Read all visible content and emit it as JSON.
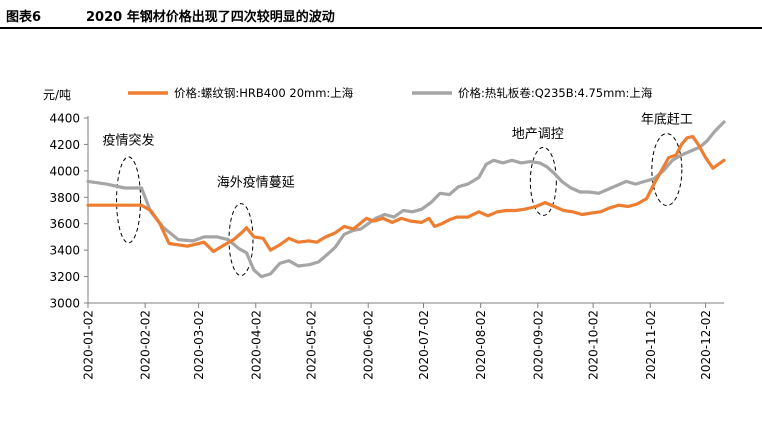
{
  "figure": {
    "label": "图表6",
    "title": "2020 年钢材价格出现了四次较明显的波动"
  },
  "chart_data": {
    "type": "line",
    "y_unit": "元/吨",
    "ylim": [
      3000,
      4400
    ],
    "y_ticks": [
      "4400",
      "4200",
      "4000",
      "3800",
      "3600",
      "3400",
      "3200",
      "3000"
    ],
    "x_ticks": [
      "2020-01-02",
      "2020-02-02",
      "2020-03-02",
      "2020-04-02",
      "2020-05-02",
      "2020-06-02",
      "2020-07-02",
      "2020-08-02",
      "2020-09-02",
      "2020-10-02",
      "2020-11-02",
      "2020-12-02"
    ],
    "xlim": [
      "2020-01-02",
      "2020-12-12"
    ],
    "grid": false,
    "legend_position": "top",
    "series": [
      {
        "name": "价格:螺纹钢:HRB400 20mm:上海",
        "color": "#ED7D31",
        "points": [
          [
            "2020-01-02",
            3740
          ],
          [
            "2020-01-20",
            3740
          ],
          [
            "2020-01-31",
            3740
          ],
          [
            "2020-02-05",
            3700
          ],
          [
            "2020-02-10",
            3600
          ],
          [
            "2020-02-15",
            3450
          ],
          [
            "2020-02-25",
            3430
          ],
          [
            "2020-03-05",
            3460
          ],
          [
            "2020-03-10",
            3390
          ],
          [
            "2020-03-16",
            3440
          ],
          [
            "2020-03-21",
            3480
          ],
          [
            "2020-03-26",
            3540
          ],
          [
            "2020-03-28",
            3570
          ],
          [
            "2020-04-01",
            3500
          ],
          [
            "2020-04-06",
            3490
          ],
          [
            "2020-04-10",
            3400
          ],
          [
            "2020-04-15",
            3440
          ],
          [
            "2020-04-20",
            3490
          ],
          [
            "2020-04-25",
            3460
          ],
          [
            "2020-05-01",
            3470
          ],
          [
            "2020-05-05",
            3460
          ],
          [
            "2020-05-10",
            3500
          ],
          [
            "2020-05-15",
            3530
          ],
          [
            "2020-05-20",
            3580
          ],
          [
            "2020-05-25",
            3560
          ],
          [
            "2020-06-01",
            3640
          ],
          [
            "2020-06-05",
            3620
          ],
          [
            "2020-06-10",
            3640
          ],
          [
            "2020-06-15",
            3610
          ],
          [
            "2020-06-20",
            3640
          ],
          [
            "2020-06-25",
            3620
          ],
          [
            "2020-07-01",
            3610
          ],
          [
            "2020-07-05",
            3640
          ],
          [
            "2020-07-08",
            3580
          ],
          [
            "2020-07-12",
            3600
          ],
          [
            "2020-07-16",
            3630
          ],
          [
            "2020-07-20",
            3650
          ],
          [
            "2020-07-26",
            3650
          ],
          [
            "2020-08-01",
            3690
          ],
          [
            "2020-08-06",
            3660
          ],
          [
            "2020-08-11",
            3690
          ],
          [
            "2020-08-16",
            3700
          ],
          [
            "2020-08-21",
            3700
          ],
          [
            "2020-08-26",
            3710
          ],
          [
            "2020-09-01",
            3730
          ],
          [
            "2020-09-06",
            3760
          ],
          [
            "2020-09-11",
            3730
          ],
          [
            "2020-09-16",
            3700
          ],
          [
            "2020-09-21",
            3690
          ],
          [
            "2020-09-26",
            3670
          ],
          [
            "2020-10-01",
            3680
          ],
          [
            "2020-10-06",
            3690
          ],
          [
            "2020-10-11",
            3720
          ],
          [
            "2020-10-16",
            3740
          ],
          [
            "2020-10-21",
            3730
          ],
          [
            "2020-10-26",
            3750
          ],
          [
            "2020-10-31",
            3790
          ],
          [
            "2020-11-04",
            3900
          ],
          [
            "2020-11-08",
            4000
          ],
          [
            "2020-11-12",
            4100
          ],
          [
            "2020-11-16",
            4120
          ],
          [
            "2020-11-19",
            4200
          ],
          [
            "2020-11-22",
            4250
          ],
          [
            "2020-11-25",
            4260
          ],
          [
            "2020-11-28",
            4200
          ],
          [
            "2020-12-02",
            4100
          ],
          [
            "2020-12-06",
            4020
          ],
          [
            "2020-12-12",
            4080
          ]
        ]
      },
      {
        "name": "价格:热轧板卷:Q235B:4.75mm:上海",
        "color": "#A5A5A5",
        "points": [
          [
            "2020-01-02",
            3920
          ],
          [
            "2020-01-12",
            3900
          ],
          [
            "2020-01-22",
            3870
          ],
          [
            "2020-01-31",
            3870
          ],
          [
            "2020-02-05",
            3690
          ],
          [
            "2020-02-12",
            3570
          ],
          [
            "2020-02-20",
            3480
          ],
          [
            "2020-02-28",
            3470
          ],
          [
            "2020-03-05",
            3500
          ],
          [
            "2020-03-12",
            3500
          ],
          [
            "2020-03-18",
            3480
          ],
          [
            "2020-03-24",
            3410
          ],
          [
            "2020-03-28",
            3380
          ],
          [
            "2020-04-01",
            3250
          ],
          [
            "2020-04-05",
            3200
          ],
          [
            "2020-04-10",
            3220
          ],
          [
            "2020-04-15",
            3300
          ],
          [
            "2020-04-20",
            3320
          ],
          [
            "2020-04-25",
            3280
          ],
          [
            "2020-05-01",
            3290
          ],
          [
            "2020-05-06",
            3310
          ],
          [
            "2020-05-11",
            3370
          ],
          [
            "2020-05-15",
            3420
          ],
          [
            "2020-05-20",
            3520
          ],
          [
            "2020-05-25",
            3550
          ],
          [
            "2020-05-29",
            3560
          ],
          [
            "2020-06-02",
            3600
          ],
          [
            "2020-06-06",
            3640
          ],
          [
            "2020-06-11",
            3670
          ],
          [
            "2020-06-16",
            3650
          ],
          [
            "2020-06-21",
            3700
          ],
          [
            "2020-06-26",
            3690
          ],
          [
            "2020-07-01",
            3710
          ],
          [
            "2020-07-06",
            3760
          ],
          [
            "2020-07-11",
            3830
          ],
          [
            "2020-07-16",
            3820
          ],
          [
            "2020-07-21",
            3880
          ],
          [
            "2020-07-26",
            3900
          ],
          [
            "2020-08-01",
            3950
          ],
          [
            "2020-08-05",
            4050
          ],
          [
            "2020-08-09",
            4080
          ],
          [
            "2020-08-14",
            4060
          ],
          [
            "2020-08-19",
            4080
          ],
          [
            "2020-08-24",
            4060
          ],
          [
            "2020-08-29",
            4070
          ],
          [
            "2020-09-03",
            4060
          ],
          [
            "2020-09-07",
            4030
          ],
          [
            "2020-09-11",
            3980
          ],
          [
            "2020-09-15",
            3920
          ],
          [
            "2020-09-20",
            3870
          ],
          [
            "2020-09-25",
            3840
          ],
          [
            "2020-09-30",
            3840
          ],
          [
            "2020-10-05",
            3830
          ],
          [
            "2020-10-10",
            3860
          ],
          [
            "2020-10-15",
            3890
          ],
          [
            "2020-10-20",
            3920
          ],
          [
            "2020-10-25",
            3900
          ],
          [
            "2020-10-30",
            3920
          ],
          [
            "2020-11-04",
            3940
          ],
          [
            "2020-11-09",
            4000
          ],
          [
            "2020-11-14",
            4080
          ],
          [
            "2020-11-19",
            4120
          ],
          [
            "2020-11-24",
            4150
          ],
          [
            "2020-11-29",
            4180
          ],
          [
            "2020-12-03",
            4230
          ],
          [
            "2020-12-07",
            4300
          ],
          [
            "2020-12-12",
            4370
          ]
        ]
      }
    ],
    "annotations": [
      {
        "text": "疫情突发",
        "date": "2020-01-24",
        "value": 4200,
        "ellipse_date": "2020-01-24",
        "ellipse_value": 3780
      },
      {
        "text": "海外疫情蔓延",
        "date": "2020-04-02",
        "value": 3880,
        "ellipse_date": "2020-03-25",
        "ellipse_value": 3480
      },
      {
        "text": "地产调控",
        "date": "2020-09-02",
        "value": 4250,
        "ellipse_date": "2020-09-05",
        "ellipse_value": 3920
      },
      {
        "text": "年底赶工",
        "date": "2020-11-11",
        "value": 4360,
        "ellipse_date": "2020-11-11",
        "ellipse_value": 4010
      }
    ]
  }
}
